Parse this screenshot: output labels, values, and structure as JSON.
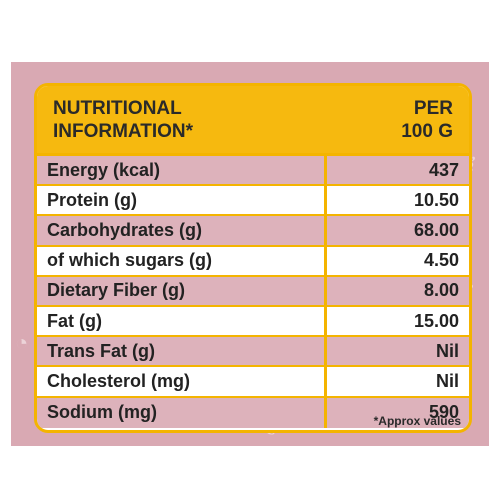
{
  "header": {
    "left_line1": "NUTRITIONAL",
    "left_line2": "INFORMATION*",
    "right_line1": "PER",
    "right_line2": "100 G"
  },
  "rows": [
    {
      "nutrient": "Energy (kcal)",
      "value": "437"
    },
    {
      "nutrient": "Protein (g)",
      "value": "10.50"
    },
    {
      "nutrient": "Carbohydrates (g)",
      "value": "68.00"
    },
    {
      "nutrient": "of which sugars (g)",
      "value": "4.50"
    },
    {
      "nutrient": "Dietary Fiber (g)",
      "value": "8.00"
    },
    {
      "nutrient": "Fat (g)",
      "value": "15.00"
    },
    {
      "nutrient": "Trans Fat (g)",
      "value": "Nil"
    },
    {
      "nutrient": "Cholesterol (mg)",
      "value": "Nil"
    },
    {
      "nutrient": "Sodium (mg)",
      "value": "590"
    }
  ],
  "footnote": "*Approx values",
  "colors": {
    "panel_background": "#d9a9b3",
    "header_yellow": "#f6b90f",
    "border_yellow": "#f4b400",
    "row_shaded": "#ddb2bb",
    "row_plain": "#ffffff"
  }
}
